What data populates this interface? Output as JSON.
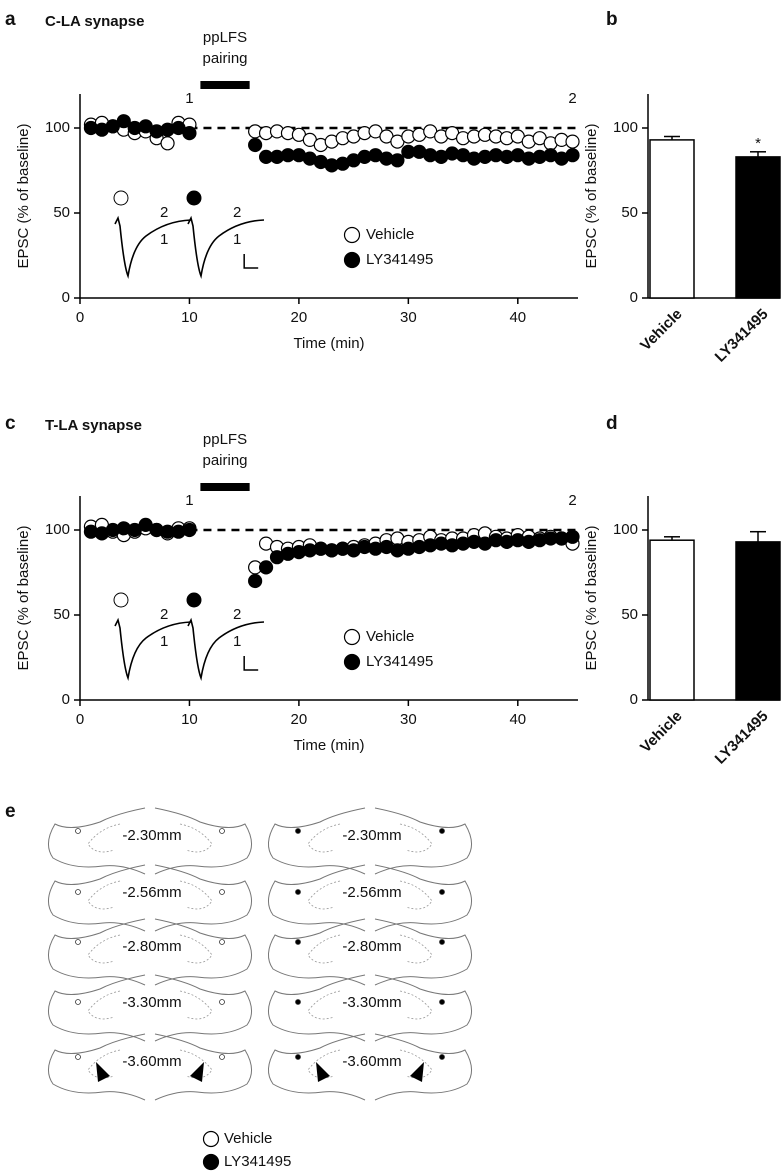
{
  "chart_data": [
    {
      "type": "scatter",
      "panel": "a",
      "title": "C-LA synapse",
      "xlabel": "Time (min)",
      "ylabel": "EPSC (% of baseline)",
      "x": [
        1,
        2,
        3,
        4,
        5,
        6,
        7,
        8,
        9,
        10,
        16,
        17,
        18,
        19,
        20,
        21,
        22,
        23,
        24,
        25,
        26,
        27,
        28,
        29,
        30,
        31,
        32,
        33,
        34,
        35,
        36,
        37,
        38,
        39,
        40,
        41,
        42,
        43,
        44,
        45
      ],
      "series": [
        {
          "name": "Vehicle",
          "marker": "open",
          "color": "#000000",
          "values": [
            102,
            103,
            101,
            99,
            97,
            98,
            94,
            91,
            103,
            102,
            98,
            97,
            98,
            97,
            96,
            93,
            90,
            92,
            94,
            95,
            97,
            98,
            95,
            92,
            95,
            96,
            98,
            95,
            97,
            94,
            95,
            96,
            95,
            94,
            95,
            92,
            94,
            91,
            93,
            92
          ]
        },
        {
          "name": "LY341495",
          "marker": "filled",
          "color": "#000000",
          "values": [
            100,
            99,
            101,
            104,
            100,
            101,
            98,
            99,
            100,
            97,
            90,
            83,
            83,
            84,
            84,
            82,
            80,
            78,
            79,
            81,
            83,
            84,
            82,
            81,
            86,
            86,
            84,
            83,
            85,
            84,
            82,
            83,
            84,
            83,
            84,
            82,
            83,
            84,
            82,
            84
          ]
        }
      ],
      "xlim": [
        0,
        45.5
      ],
      "ylim": [
        0,
        120
      ],
      "xticks": [
        0,
        10,
        20,
        30,
        40
      ],
      "yticks": [
        0,
        50,
        100
      ],
      "baseline": 100,
      "pairing": {
        "label": [
          "ppLFS",
          "pairing"
        ],
        "span": [
          11,
          15.5
        ]
      },
      "annotations": [
        {
          "text": "1",
          "x": 10
        },
        {
          "text": "2",
          "x": 45
        }
      ],
      "inset_labels": [
        "2",
        "1"
      ]
    },
    {
      "type": "bar",
      "panel": "b",
      "ylabel": "EPSC (% of baseline)",
      "categories": [
        "Vehicle",
        "LY341495"
      ],
      "values": [
        93,
        83
      ],
      "errors": [
        2,
        3
      ],
      "colors": [
        "#ffffff",
        "#000000"
      ],
      "ylim": [
        0,
        120
      ],
      "yticks": [
        0,
        50,
        100
      ],
      "annotations": [
        {
          "text": "*",
          "category": 1
        }
      ]
    },
    {
      "type": "scatter",
      "panel": "c",
      "title": "T-LA synapse",
      "xlabel": "Time (min)",
      "ylabel": "EPSC (% of baseline)",
      "x": [
        1,
        2,
        3,
        4,
        5,
        6,
        7,
        8,
        9,
        10,
        16,
        17,
        18,
        19,
        20,
        21,
        22,
        23,
        24,
        25,
        26,
        27,
        28,
        29,
        30,
        31,
        32,
        33,
        34,
        35,
        36,
        37,
        38,
        39,
        40,
        41,
        42,
        43,
        44,
        45
      ],
      "series": [
        {
          "name": "Vehicle",
          "marker": "open",
          "color": "#000000",
          "values": [
            102,
            103,
            99,
            97,
            99,
            101,
            100,
            98,
            101,
            101,
            78,
            92,
            90,
            89,
            90,
            91,
            89,
            88,
            89,
            90,
            91,
            92,
            94,
            95,
            93,
            94,
            96,
            94,
            95,
            95,
            97,
            98,
            96,
            95,
            97,
            96,
            95,
            96,
            95,
            92
          ]
        },
        {
          "name": "LY341495",
          "marker": "filled",
          "color": "#000000",
          "values": [
            99,
            98,
            100,
            101,
            100,
            103,
            100,
            99,
            99,
            100,
            70,
            78,
            84,
            86,
            87,
            88,
            89,
            88,
            89,
            88,
            90,
            89,
            90,
            88,
            89,
            90,
            91,
            92,
            91,
            92,
            93,
            92,
            94,
            93,
            94,
            93,
            94,
            95,
            95,
            96
          ]
        }
      ],
      "xlim": [
        0,
        45.5
      ],
      "ylim": [
        0,
        120
      ],
      "xticks": [
        0,
        10,
        20,
        30,
        40
      ],
      "yticks": [
        0,
        50,
        100
      ],
      "baseline": 100,
      "pairing": {
        "label": [
          "ppLFS",
          "pairing"
        ],
        "span": [
          11,
          15.5
        ]
      },
      "annotations": [
        {
          "text": "1",
          "x": 10
        },
        {
          "text": "2",
          "x": 45
        }
      ],
      "inset_labels": [
        "2",
        "1"
      ]
    },
    {
      "type": "bar",
      "panel": "d",
      "ylabel": "EPSC (% of baseline)",
      "categories": [
        "Vehicle",
        "LY341495"
      ],
      "values": [
        94,
        93
      ],
      "errors": [
        2,
        6
      ],
      "colors": [
        "#ffffff",
        "#000000"
      ],
      "ylim": [
        0,
        120
      ],
      "yticks": [
        0,
        50,
        100
      ]
    }
  ],
  "panel_e": {
    "letter": "e",
    "levels": [
      "-2.30mm",
      "-2.56mm",
      "-2.80mm",
      "-3.30mm",
      "-3.60mm"
    ],
    "legend": [
      "Vehicle",
      "LY341495"
    ]
  }
}
